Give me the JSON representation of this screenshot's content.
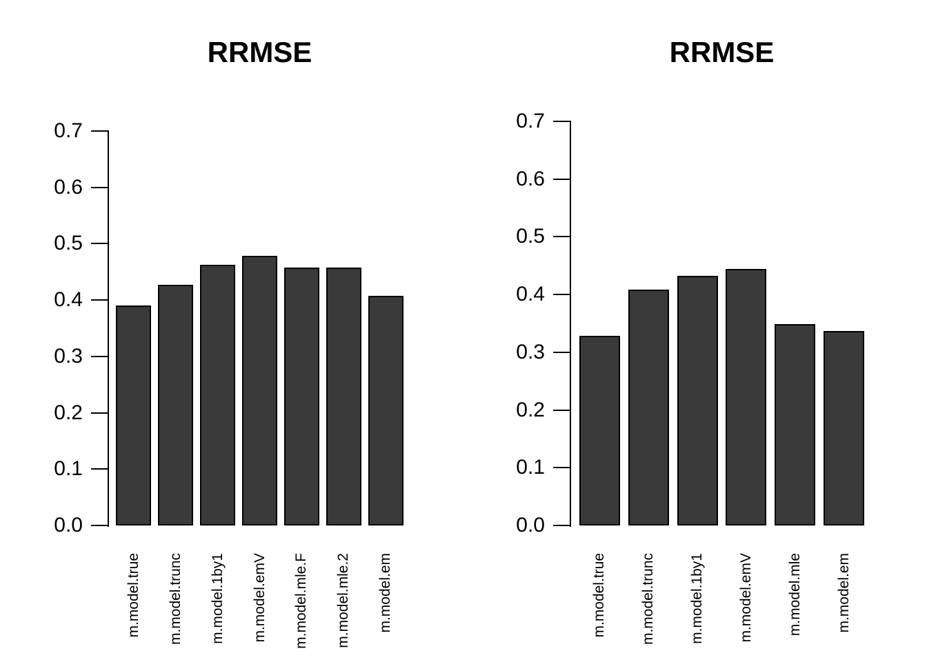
{
  "figure": {
    "background": "#ffffff"
  },
  "colors": {
    "bar_fill": "#3a3a3a",
    "bar_border": "#000000",
    "axis": "#000000",
    "text": "#000000"
  },
  "chart_data": [
    {
      "type": "bar",
      "title": "RRMSE",
      "categories": [
        "m.model.true",
        "m.model.trunc",
        "m.model.1by1",
        "m.model.emV",
        "m.model.mle.F",
        "m.model.mle.2",
        "m.model.em"
      ],
      "values": [
        0.39,
        0.427,
        0.462,
        0.479,
        0.458,
        0.458,
        0.407
      ],
      "xlabel": "",
      "ylabel": "",
      "ylim": [
        0,
        0.7
      ],
      "yticks": [
        "0.0",
        "0.1",
        "0.2",
        "0.3",
        "0.4",
        "0.5",
        "0.6",
        "0.7"
      ],
      "x_tick_rotation": 90,
      "grid": false,
      "legend": "none"
    },
    {
      "type": "bar",
      "title": "RRMSE",
      "categories": [
        "m.model.true",
        "m.model.trunc",
        "m.model.1by1",
        "m.model.emV",
        "m.model.mle",
        "m.model.em"
      ],
      "values": [
        0.329,
        0.409,
        0.433,
        0.444,
        0.349,
        0.337
      ],
      "xlabel": "",
      "ylabel": "",
      "ylim": [
        0,
        0.7
      ],
      "yticks": [
        "0.0",
        "0.1",
        "0.2",
        "0.3",
        "0.4",
        "0.5",
        "0.6",
        "0.7"
      ],
      "x_tick_rotation": 90,
      "grid": false,
      "legend": "none"
    }
  ]
}
